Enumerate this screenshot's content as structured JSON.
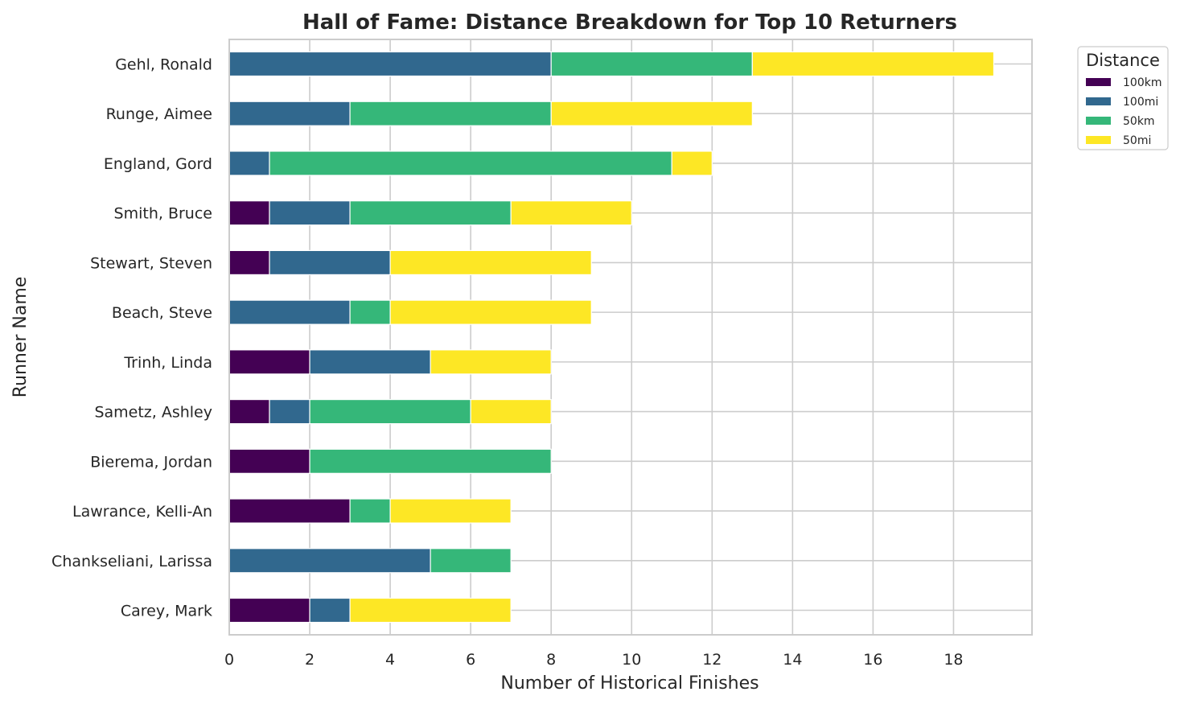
{
  "chart_data": {
    "type": "bar",
    "orientation": "horizontal",
    "stacked": true,
    "title": "Hall of Fame: Distance Breakdown for Top 10 Returners",
    "xlabel": "Number of Historical Finishes",
    "ylabel": "Runner Name",
    "xlim": [
      0,
      20
    ],
    "xticks": [
      "0",
      "2",
      "4",
      "6",
      "8",
      "10",
      "12",
      "14",
      "16",
      "18"
    ],
    "grid": true,
    "legend": {
      "title": "Distance",
      "placement": "outside top-right"
    },
    "categories": [
      "Gehl, Ronald",
      "Runge, Aimee",
      "England, Gord",
      "Smith, Bruce",
      "Stewart, Steven",
      "Beach, Steve",
      "Trinh, Linda",
      "Sametz, Ashley",
      "Bierema, Jordan",
      "Lawrance, Kelli-An",
      "Chankseliani, Larissa",
      "Carey, Mark"
    ],
    "series": [
      {
        "name": "100km",
        "color": "#440154",
        "values": [
          0,
          0,
          0,
          1,
          1,
          0,
          2,
          1,
          2,
          3,
          0,
          2
        ]
      },
      {
        "name": "100mi",
        "color": "#31688e",
        "values": [
          8,
          3,
          1,
          2,
          3,
          3,
          3,
          1,
          0,
          0,
          5,
          1
        ]
      },
      {
        "name": "50km",
        "color": "#35b779",
        "values": [
          5,
          5,
          10,
          4,
          0,
          1,
          0,
          4,
          6,
          1,
          2,
          0
        ]
      },
      {
        "name": "50mi",
        "color": "#fde725",
        "values": [
          6,
          5,
          1,
          3,
          5,
          5,
          3,
          2,
          0,
          3,
          0,
          4
        ]
      }
    ]
  }
}
